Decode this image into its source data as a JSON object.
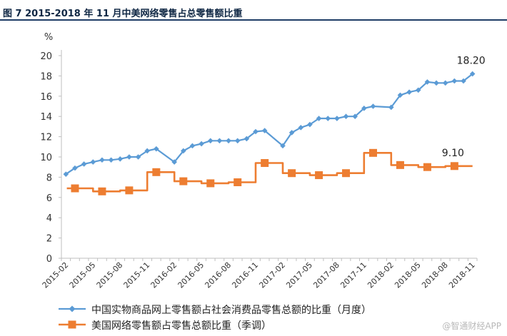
{
  "figure": {
    "title": "图 7   2015-2018 年 11 月中美网络零售占总零售额比重",
    "watermark": "@智通财经APP"
  },
  "chart_data": {
    "type": "line",
    "unit": "%",
    "ylim": [
      0,
      20
    ],
    "yticks": [
      0,
      2,
      4,
      6,
      8,
      10,
      12,
      14,
      16,
      18,
      20
    ],
    "x_tick_labels": [
      "2015-02",
      "2015-05",
      "2015-08",
      "2015-11",
      "2016-02",
      "2016-05",
      "2016-08",
      "2016-11",
      "2017-02",
      "2017-05",
      "2017-08",
      "2017-11",
      "2018-02",
      "2018-05",
      "2018-08",
      "2018-11"
    ],
    "months": [
      "2015-02",
      "2015-03",
      "2015-04",
      "2015-05",
      "2015-06",
      "2015-07",
      "2015-08",
      "2015-09",
      "2015-10",
      "2015-11",
      "2015-12",
      "2016-01",
      "2016-02",
      "2016-03",
      "2016-04",
      "2016-05",
      "2016-06",
      "2016-07",
      "2016-08",
      "2016-09",
      "2016-10",
      "2016-11",
      "2016-12",
      "2017-01",
      "2017-02",
      "2017-03",
      "2017-04",
      "2017-05",
      "2017-06",
      "2017-07",
      "2017-08",
      "2017-09",
      "2017-10",
      "2017-11",
      "2017-12",
      "2018-01",
      "2018-02",
      "2018-03",
      "2018-04",
      "2018-05",
      "2018-06",
      "2018-07",
      "2018-08",
      "2018-09",
      "2018-10",
      "2018-11"
    ],
    "series": [
      {
        "name": "中国实物商品网上零售额占社会消费品零售总额的比重（月度）",
        "color": "#5b9bd5",
        "marker": "diamond",
        "x": [
          "2015-02",
          "2015-03",
          "2015-04",
          "2015-05",
          "2015-06",
          "2015-07",
          "2015-08",
          "2015-09",
          "2015-10",
          "2015-11",
          "2015-12",
          "2016-02",
          "2016-03",
          "2016-04",
          "2016-05",
          "2016-06",
          "2016-07",
          "2016-08",
          "2016-09",
          "2016-10",
          "2016-11",
          "2016-12",
          "2017-02",
          "2017-03",
          "2017-04",
          "2017-05",
          "2017-06",
          "2017-07",
          "2017-08",
          "2017-09",
          "2017-10",
          "2017-11",
          "2017-12",
          "2018-02",
          "2018-03",
          "2018-04",
          "2018-05",
          "2018-06",
          "2018-07",
          "2018-08",
          "2018-09",
          "2018-10",
          "2018-11"
        ],
        "values": [
          8.3,
          8.9,
          9.3,
          9.5,
          9.7,
          9.7,
          9.8,
          10.0,
          10.0,
          10.6,
          10.8,
          9.5,
          10.6,
          11.1,
          11.3,
          11.6,
          11.6,
          11.6,
          11.6,
          11.8,
          12.5,
          12.6,
          11.1,
          12.4,
          12.9,
          13.2,
          13.8,
          13.8,
          13.8,
          14.0,
          14.0,
          14.8,
          15.0,
          14.9,
          16.1,
          16.4,
          16.6,
          17.4,
          17.3,
          17.3,
          17.5,
          17.5,
          18.2
        ],
        "data_label": {
          "x": "2018-11",
          "text": "18.20"
        }
      },
      {
        "name": "美国网络零售额占零售总额比重（季调）",
        "color": "#ed7d31",
        "marker": "square",
        "x": [
          "2015-03",
          "2015-06",
          "2015-09",
          "2015-12",
          "2016-03",
          "2016-06",
          "2016-09",
          "2016-12",
          "2017-03",
          "2017-06",
          "2017-09",
          "2017-12",
          "2018-03",
          "2018-06",
          "2018-09"
        ],
        "values": [
          6.9,
          6.6,
          6.7,
          8.5,
          7.6,
          7.4,
          7.5,
          9.4,
          8.4,
          8.2,
          8.4,
          10.4,
          9.2,
          9.0,
          9.1
        ],
        "extend_to": "2018-11",
        "data_label": {
          "x": "2018-09",
          "text": "9.10"
        }
      }
    ]
  }
}
